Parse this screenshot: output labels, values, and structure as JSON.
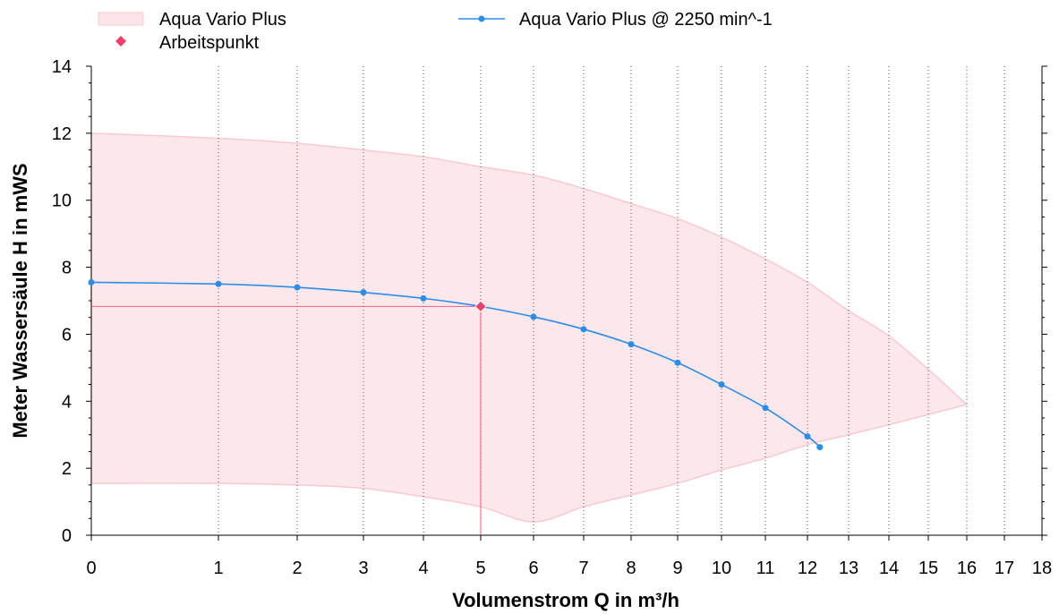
{
  "chart_data": {
    "type": "line",
    "title": "",
    "xlabel": "Volumenstrom Q in m³/h",
    "ylabel": "Meter Wassersäule H in mWS",
    "xlim": [
      0,
      18
    ],
    "ylim": [
      0,
      14
    ],
    "x_scale": "nonlinear (compressed at low flow)",
    "x_ticks": [
      0,
      1,
      2,
      3,
      4,
      5,
      6,
      7,
      8,
      9,
      10,
      11,
      12,
      13,
      14,
      15,
      16,
      17,
      18
    ],
    "y_ticks": [
      0,
      2,
      4,
      6,
      8,
      10,
      12,
      14
    ],
    "grid": "vertical dotted lines at x ticks",
    "legend_position": "top",
    "legend": [
      {
        "label": "Aqua Vario Plus",
        "kind": "band",
        "color": "#f9c9d3"
      },
      {
        "label": "Aqua Vario Plus @ 2250 min^-1",
        "kind": "line",
        "color": "#2a8de8"
      },
      {
        "label": "Arbeitspunkt",
        "kind": "marker",
        "color": "#ef3e6c"
      }
    ],
    "series": [
      {
        "name": "Aqua Vario Plus",
        "type": "area-band",
        "color": "#f9c9d3",
        "upper": [
          [
            0,
            12.0
          ],
          [
            1,
            11.85
          ],
          [
            2,
            11.7
          ],
          [
            3,
            11.5
          ],
          [
            4,
            11.3
          ],
          [
            5,
            11.0
          ],
          [
            6,
            10.75
          ],
          [
            7,
            10.35
          ],
          [
            8,
            9.9
          ],
          [
            9,
            9.45
          ],
          [
            10,
            8.9
          ],
          [
            11,
            8.25
          ],
          [
            12,
            7.55
          ],
          [
            13,
            6.7
          ],
          [
            14,
            5.95
          ],
          [
            15,
            4.95
          ],
          [
            16,
            3.9
          ]
        ],
        "lower": [
          [
            0,
            1.55
          ],
          [
            1,
            1.55
          ],
          [
            2,
            1.5
          ],
          [
            3,
            1.4
          ],
          [
            4,
            1.15
          ],
          [
            5,
            0.85
          ],
          [
            6,
            0.4
          ],
          [
            7,
            0.85
          ],
          [
            8,
            1.2
          ],
          [
            9,
            1.55
          ],
          [
            10,
            1.95
          ],
          [
            11,
            2.3
          ],
          [
            12,
            2.7
          ],
          [
            13,
            3.0
          ],
          [
            14,
            3.3
          ],
          [
            15,
            3.6
          ],
          [
            16,
            3.9
          ]
        ]
      },
      {
        "name": "Aqua Vario Plus @ 2250 min^-1",
        "type": "line",
        "color": "#2a8de8",
        "points": [
          [
            0,
            7.55
          ],
          [
            1,
            7.5
          ],
          [
            2,
            7.4
          ],
          [
            3,
            7.25
          ],
          [
            4,
            7.07
          ],
          [
            5,
            6.83
          ],
          [
            6,
            6.52
          ],
          [
            7,
            6.15
          ],
          [
            8,
            5.7
          ],
          [
            9,
            5.15
          ],
          [
            10,
            4.5
          ],
          [
            11,
            3.8
          ],
          [
            12,
            2.95
          ],
          [
            12.3,
            2.63
          ]
        ]
      }
    ],
    "operating_point": {
      "name": "Arbeitspunkt",
      "x": 5,
      "y": 6.83,
      "color": "#ef3e6c"
    }
  }
}
